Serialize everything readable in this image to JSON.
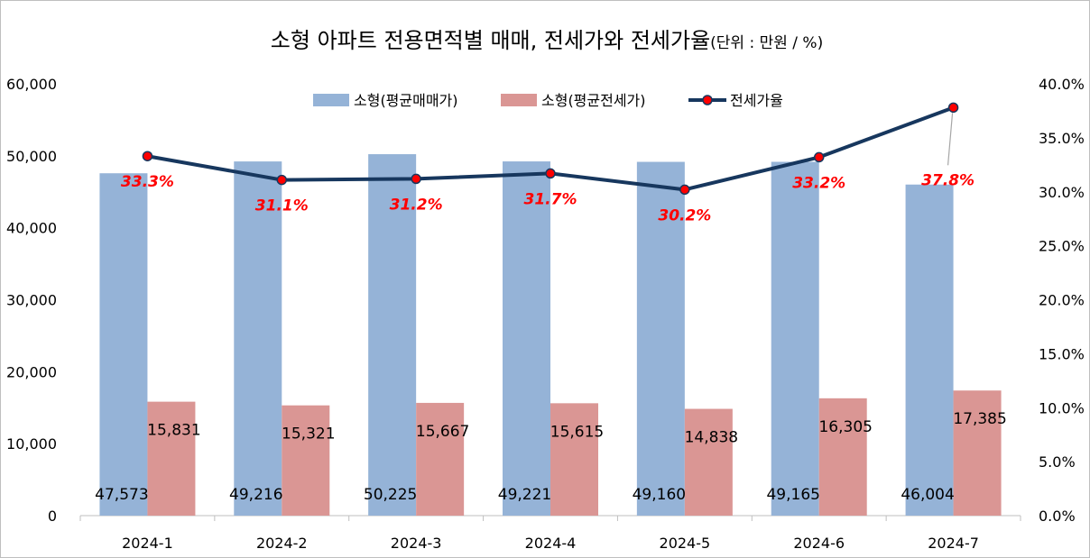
{
  "chart_data": {
    "type": "bar",
    "title": "소형 아파트 전용면적별 매매, 전세가와 전세가율",
    "subtitle": "(단위 : 만원 / %)",
    "categories": [
      "2024-1",
      "2024-2",
      "2024-3",
      "2024-4",
      "2024-5",
      "2024-6",
      "2024-7"
    ],
    "series": [
      {
        "name": "소형(평균매매가)",
        "type": "bar",
        "axis": "left",
        "color": "#95b3d7",
        "values": [
          47573,
          49216,
          50225,
          49221,
          49160,
          49165,
          46004
        ],
        "labels": [
          "47,573",
          "49,216",
          "50,225",
          "49,221",
          "49,160",
          "49,165",
          "46,004"
        ]
      },
      {
        "name": "소형(평균전세가)",
        "type": "bar",
        "axis": "left",
        "color": "#da9694",
        "values": [
          15831,
          15321,
          15667,
          15615,
          14838,
          16305,
          17385
        ],
        "labels": [
          "15,831",
          "15,321",
          "15,667",
          "15,615",
          "14,838",
          "16,305",
          "17,385"
        ]
      },
      {
        "name": "전세가율",
        "type": "line",
        "axis": "right",
        "color": "#17375e",
        "marker_color": "#ff0000",
        "values": [
          33.3,
          31.1,
          31.2,
          31.7,
          30.2,
          33.2,
          37.8
        ],
        "labels": [
          "33.3%",
          "31.1%",
          "31.2%",
          "31.7%",
          "30.2%",
          "33.2%",
          "37.8%"
        ]
      }
    ],
    "y_left": {
      "ylim": [
        0,
        60000
      ],
      "ticks": [
        "0",
        "10,000",
        "20,000",
        "30,000",
        "40,000",
        "50,000",
        "60,000"
      ]
    },
    "y_right": {
      "ylim": [
        0,
        40
      ],
      "ticks": [
        "0.0%",
        "5.0%",
        "10.0%",
        "15.0%",
        "20.0%",
        "25.0%",
        "30.0%",
        "35.0%",
        "40.0%"
      ]
    },
    "grid": false,
    "legend": "top-center"
  }
}
